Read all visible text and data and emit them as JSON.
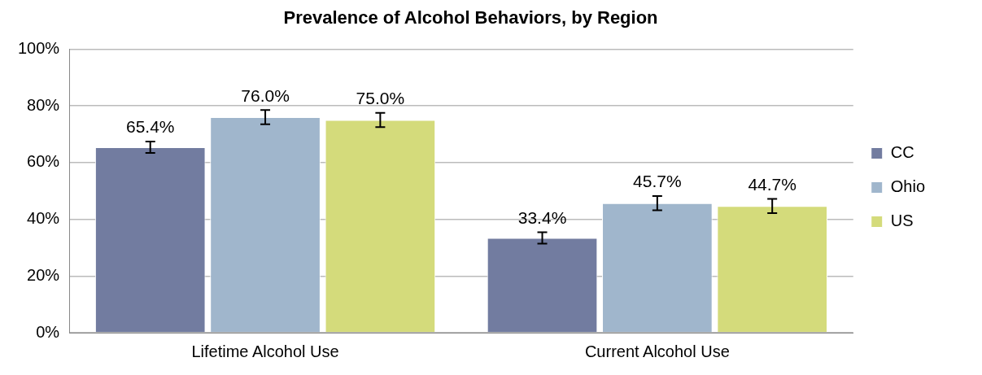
{
  "chart_data": {
    "type": "bar",
    "title": "Prevalence of Alcohol Behaviors, by Region",
    "categories": [
      "Lifetime Alcohol Use",
      "Current Alcohol Use"
    ],
    "series": [
      {
        "name": "CC",
        "color": "#727ca0",
        "values": [
          65.4,
          33.4
        ],
        "errors": [
          2,
          2
        ],
        "value_labels": [
          "65.4%",
          "33.4%"
        ]
      },
      {
        "name": "Ohio",
        "color": "#a0b6cc",
        "values": [
          76.0,
          45.7
        ],
        "errors": [
          2.5,
          2.5
        ],
        "value_labels": [
          "76.0%",
          "45.7%"
        ]
      },
      {
        "name": "US",
        "color": "#d4db7b",
        "values": [
          75.0,
          44.7
        ],
        "errors": [
          2.5,
          2.5
        ],
        "value_labels": [
          "75.0%",
          "44.7%"
        ]
      }
    ],
    "ylim": [
      0,
      100
    ],
    "yticks": [
      {
        "value": 0,
        "label": "0%"
      },
      {
        "value": 20,
        "label": "20%"
      },
      {
        "value": 40,
        "label": "40%"
      },
      {
        "value": 60,
        "label": "60%"
      },
      {
        "value": 80,
        "label": "80%"
      },
      {
        "value": 100,
        "label": "100%"
      }
    ],
    "grid": "y",
    "legend": "right"
  }
}
